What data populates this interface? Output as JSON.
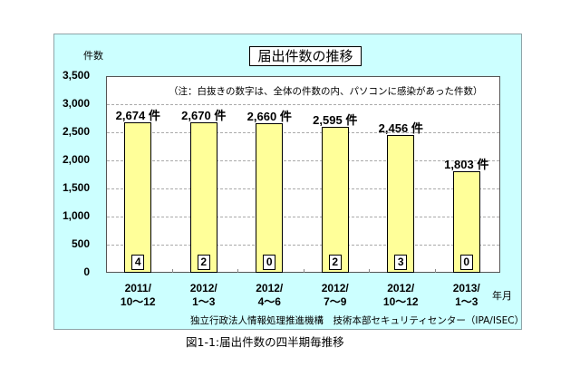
{
  "chart_data": {
    "type": "bar",
    "title": "届出件数の推移",
    "ylabel": "件数",
    "xlabel": "年月",
    "ylim": [
      0,
      3500
    ],
    "yticks": [
      "0",
      "500",
      "1,000",
      "1,500",
      "2,000",
      "2,500",
      "3,000",
      "3,500"
    ],
    "grid": true,
    "categories": [
      "2011/ 10〜12",
      "2012/ 1〜3",
      "2012/ 4〜6",
      "2012/ 7〜9",
      "2012/ 10〜12",
      "2013/ 1〜3"
    ],
    "series": [
      {
        "name": "届出件数",
        "values": [
          2674,
          2670,
          2660,
          2595,
          2456,
          1803
        ],
        "color": "#ffff99"
      },
      {
        "name": "パソコンに感染があった件数",
        "values": [
          4,
          2,
          0,
          2,
          3,
          0
        ]
      }
    ],
    "value_labels": [
      "2,674 件",
      "2,670 件",
      "2,660 件",
      "2,595 件",
      "2,456 件",
      "1,803 件"
    ],
    "annotation": "（注：白抜きの数字は、全体の件数の内、パソコンに感染があった件数）"
  },
  "chart": {
    "title": "届出件数の推移",
    "y_unit": "件数",
    "x_unit": "年月",
    "note": "（注：白抜きの数字は、全体の件数の内、パソコンに感染があった件数）",
    "yticks": [
      {
        "label": "3,500",
        "value": 3500
      },
      {
        "label": "3,000",
        "value": 3000
      },
      {
        "label": "2,500",
        "value": 2500
      },
      {
        "label": "2,000",
        "value": 2000
      },
      {
        "label": "1,500",
        "value": 1500
      },
      {
        "label": "1,000",
        "value": 1000
      },
      {
        "label": "500",
        "value": 500
      },
      {
        "label": "0",
        "value": 0
      }
    ],
    "bars": [
      {
        "line1": "2011/",
        "line2": "10〜12",
        "value": 2674,
        "label": "2,674 件",
        "pc": "4"
      },
      {
        "line1": "2012/",
        "line2": "1〜3",
        "value": 2670,
        "label": "2,670 件",
        "pc": "2"
      },
      {
        "line1": "2012/",
        "line2": "4〜6",
        "value": 2660,
        "label": "2,660 件",
        "pc": "0"
      },
      {
        "line1": "2012/",
        "line2": "7〜9",
        "value": 2595,
        "label": "2,595 件",
        "pc": "2"
      },
      {
        "line1": "2012/",
        "line2": "10〜12",
        "value": 2456,
        "label": "2,456 件",
        "pc": "3"
      },
      {
        "line1": "2013/",
        "line2": "1〜3",
        "value": 1803,
        "label": "1,803 件",
        "pc": "0"
      }
    ],
    "source": "独立行政法人情報処理推進機構　技術本部セキュリティセンター（IPA/ISEC）",
    "bar_color": "#ffff99",
    "panel_color": "#ccffff"
  },
  "caption": "図1-1:届出件数の四半期毎推移"
}
